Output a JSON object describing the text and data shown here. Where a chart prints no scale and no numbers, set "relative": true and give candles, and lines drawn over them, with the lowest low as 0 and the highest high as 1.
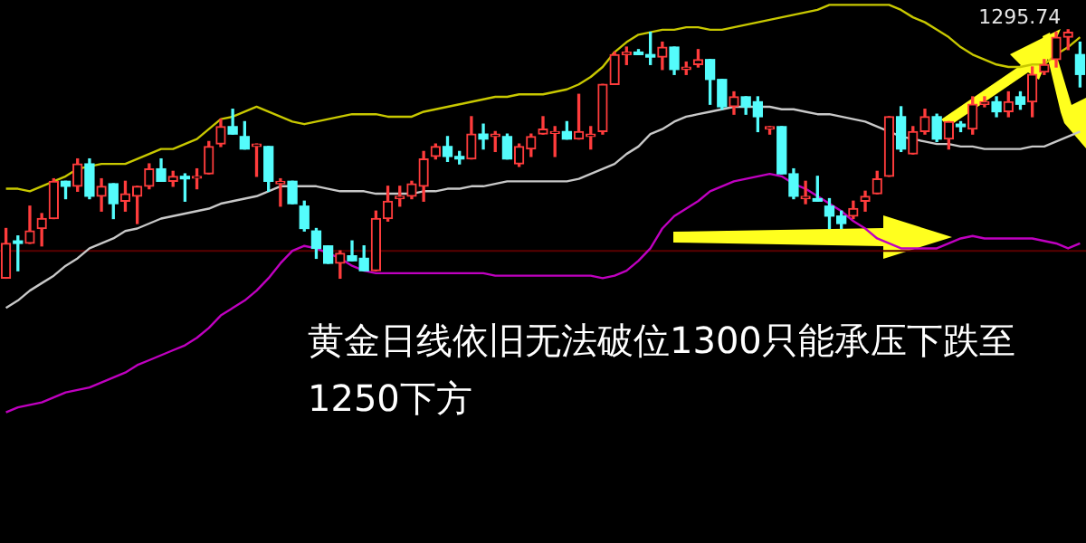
{
  "chart_data": {
    "type": "candlestick",
    "relative": true,
    "grid": false,
    "legend": false,
    "categories": [
      null,
      null,
      null,
      null,
      null,
      null,
      null,
      null,
      null,
      null,
      null,
      null,
      null,
      null,
      null,
      null,
      null,
      null,
      null,
      null,
      null,
      null,
      null,
      null,
      null,
      null,
      null,
      null,
      null,
      null,
      null,
      null,
      null,
      null,
      null,
      null,
      null,
      null,
      null,
      null,
      null,
      null,
      null,
      null,
      null,
      null,
      null,
      null,
      null,
      null,
      null,
      null,
      null,
      null,
      null,
      null,
      null,
      null,
      null,
      null,
      null,
      null,
      null,
      null,
      null,
      null,
      null,
      null,
      null,
      null,
      null,
      null,
      null,
      null,
      null,
      null,
      null,
      null,
      null,
      null,
      null,
      null,
      null,
      null,
      null,
      null,
      null,
      null,
      null,
      null,
      null
    ],
    "ohlc": [
      [
        0,
        0.2,
        0,
        0.14
      ],
      [
        0.15,
        0.17,
        0.03,
        0.14
      ],
      [
        0.14,
        0.29,
        0.14,
        0.19
      ],
      [
        0.2,
        0.26,
        0.13,
        0.24
      ],
      [
        0.24,
        0.4,
        0.24,
        0.39
      ],
      [
        0.39,
        0.39,
        0.32,
        0.37
      ],
      [
        0.37,
        0.48,
        0.35,
        0.46
      ],
      [
        0.46,
        0.48,
        0.32,
        0.33
      ],
      [
        0.33,
        0.4,
        0.27,
        0.37
      ],
      [
        0.38,
        0.38,
        0.24,
        0.3
      ],
      [
        0.31,
        0.39,
        0.27,
        0.34
      ],
      [
        0.33,
        0.37,
        0.22,
        0.37
      ],
      [
        0.37,
        0.46,
        0.36,
        0.44
      ],
      [
        0.44,
        0.48,
        0.39,
        0.39
      ],
      [
        0.39,
        0.43,
        0.37,
        0.41
      ],
      [
        0.41,
        0.42,
        0.31,
        0.4
      ],
      [
        0.41,
        0.44,
        0.36,
        0.41
      ],
      [
        0.42,
        0.55,
        0.42,
        0.53
      ],
      [
        0.54,
        0.64,
        0.53,
        0.61
      ],
      [
        0.61,
        0.68,
        0.58,
        0.58
      ],
      [
        0.57,
        0.63,
        0.52,
        0.52
      ],
      [
        0.53,
        0.54,
        0.41,
        0.54
      ],
      [
        0.53,
        0.53,
        0.35,
        0.39
      ],
      [
        0.38,
        0.4,
        0.29,
        0.39
      ],
      [
        0.39,
        0.39,
        0.3,
        0.3
      ],
      [
        0.29,
        0.31,
        0.19,
        0.2
      ],
      [
        0.19,
        0.2,
        0.08,
        0.12
      ],
      [
        0.13,
        0.13,
        0.06,
        0.06
      ],
      [
        0.06,
        0.11,
        0,
        0.1
      ],
      [
        0.09,
        0.15,
        0.07,
        0.07
      ],
      [
        0.08,
        0.13,
        0.03,
        0.03
      ],
      [
        0.03,
        0.27,
        0.03,
        0.24
      ],
      [
        0.24,
        0.37,
        0.23,
        0.31
      ],
      [
        0.32,
        0.37,
        0.29,
        0.33
      ],
      [
        0.33,
        0.39,
        0.32,
        0.38
      ],
      [
        0.37,
        0.51,
        0.31,
        0.48
      ],
      [
        0.49,
        0.54,
        0.48,
        0.53
      ],
      [
        0.53,
        0.57,
        0.47,
        0.49
      ],
      [
        0.49,
        0.51,
        0.46,
        0.48
      ],
      [
        0.48,
        0.65,
        0.48,
        0.58
      ],
      [
        0.58,
        0.62,
        0.52,
        0.56
      ],
      [
        0.57,
        0.59,
        0.51,
        0.58
      ],
      [
        0.57,
        0.58,
        0.48,
        0.48
      ],
      [
        0.46,
        0.54,
        0.45,
        0.53
      ],
      [
        0.52,
        0.58,
        0.49,
        0.57
      ],
      [
        0.58,
        0.65,
        0.58,
        0.6
      ],
      [
        0.59,
        0.61,
        0.49,
        0.59
      ],
      [
        0.59,
        0.63,
        0.56,
        0.56
      ],
      [
        0.56,
        0.74,
        0.56,
        0.59
      ],
      [
        0.57,
        0.61,
        0.52,
        0.58
      ],
      [
        0.59,
        0.78,
        0.58,
        0.78
      ],
      [
        0.78,
        0.91,
        0.78,
        0.9
      ],
      [
        0.9,
        0.93,
        0.86,
        0.91
      ],
      [
        0.91,
        0.92,
        0.9,
        0.9
      ],
      [
        0.9,
        0.99,
        0.86,
        0.89
      ],
      [
        0.89,
        0.95,
        0.84,
        0.93
      ],
      [
        0.93,
        0.93,
        0.82,
        0.84
      ],
      [
        0.84,
        0.87,
        0.82,
        0.85
      ],
      [
        0.86,
        0.92,
        0.85,
        0.88
      ],
      [
        0.88,
        0.88,
        0.7,
        0.8
      ],
      [
        0.8,
        0.8,
        0.68,
        0.69
      ],
      [
        0.69,
        0.75,
        0.66,
        0.73
      ],
      [
        0.73,
        0.73,
        0.66,
        0.69
      ],
      [
        0.71,
        0.73,
        0.59,
        0.65
      ],
      [
        0.6,
        0.61,
        0.58,
        0.61
      ],
      [
        0.61,
        0.61,
        0.42,
        0.42
      ],
      [
        0.42,
        0.44,
        0.32,
        0.33
      ],
      [
        0.32,
        0.39,
        0.3,
        0.33
      ],
      [
        0.32,
        0.41,
        0.31,
        0.31
      ],
      [
        0.29,
        0.32,
        0.2,
        0.25
      ],
      [
        0.25,
        0.27,
        0.2,
        0.22
      ],
      [
        0.25,
        0.31,
        0.24,
        0.28
      ],
      [
        0.31,
        0.35,
        0.27,
        0.33
      ],
      [
        0.34,
        0.43,
        0.34,
        0.4
      ],
      [
        0.41,
        0.65,
        0.41,
        0.65
      ],
      [
        0.65,
        0.69,
        0.51,
        0.52
      ],
      [
        0.5,
        0.61,
        0.5,
        0.59
      ],
      [
        0.59,
        0.68,
        0.58,
        0.65
      ],
      [
        0.65,
        0.66,
        0.55,
        0.56
      ],
      [
        0.56,
        0.63,
        0.52,
        0.63
      ],
      [
        0.62,
        0.63,
        0.59,
        0.61
      ],
      [
        0.6,
        0.73,
        0.58,
        0.7
      ],
      [
        0.7,
        0.73,
        0.69,
        0.71
      ],
      [
        0.71,
        0.73,
        0.65,
        0.67
      ],
      [
        0.67,
        0.75,
        0.65,
        0.71
      ],
      [
        0.73,
        0.75,
        0.68,
        0.7
      ],
      [
        0.71,
        0.85,
        0.65,
        0.82
      ],
      [
        0.83,
        0.88,
        0.82,
        0.86
      ],
      [
        0.88,
        0.99,
        0.85,
        0.97
      ],
      [
        0.97,
        1,
        0.92,
        0.99
      ],
      [
        0.9,
        0.95,
        0.77,
        0.82
      ]
    ],
    "series": [
      {
        "type": "line",
        "color": "#c8c800",
        "values": [
          0.36,
          0.36,
          0.35,
          0.37,
          0.39,
          0.41,
          0.44,
          0.45,
          0.46,
          0.46,
          0.46,
          0.48,
          0.5,
          0.52,
          0.52,
          0.54,
          0.56,
          0.6,
          0.64,
          0.65,
          0.67,
          0.69,
          0.67,
          0.65,
          0.63,
          0.62,
          0.63,
          0.64,
          0.65,
          0.66,
          0.66,
          0.66,
          0.65,
          0.65,
          0.65,
          0.67,
          0.68,
          0.69,
          0.7,
          0.71,
          0.72,
          0.73,
          0.73,
          0.74,
          0.74,
          0.74,
          0.75,
          0.76,
          0.78,
          0.81,
          0.85,
          0.91,
          0.95,
          0.98,
          0.99,
          1,
          1,
          1.01,
          1.01,
          1,
          1,
          1.01,
          1.02,
          1.03,
          1.04,
          1.05,
          1.06,
          1.07,
          1.08,
          1.1,
          1.1,
          1.1,
          1.1,
          1.1,
          1.1,
          1.08,
          1.05,
          1.03,
          1,
          0.97,
          0.93,
          0.9,
          0.88,
          0.86,
          0.85,
          0.85,
          0.86,
          0.86,
          0.9,
          0.93,
          0.97
        ]
      },
      {
        "type": "line",
        "color": "#c8c8c8",
        "values": [
          -0.12,
          -0.09,
          -0.05,
          -0.02,
          0.01,
          0.05,
          0.08,
          0.12,
          0.14,
          0.16,
          0.19,
          0.2,
          0.22,
          0.24,
          0.25,
          0.26,
          0.27,
          0.28,
          0.3,
          0.31,
          0.32,
          0.33,
          0.35,
          0.37,
          0.37,
          0.37,
          0.37,
          0.36,
          0.35,
          0.35,
          0.35,
          0.34,
          0.34,
          0.34,
          0.34,
          0.35,
          0.35,
          0.36,
          0.36,
          0.37,
          0.37,
          0.38,
          0.39,
          0.39,
          0.39,
          0.39,
          0.39,
          0.39,
          0.4,
          0.42,
          0.44,
          0.46,
          0.5,
          0.53,
          0.58,
          0.6,
          0.63,
          0.65,
          0.66,
          0.67,
          0.68,
          0.69,
          0.69,
          0.69,
          0.69,
          0.68,
          0.68,
          0.67,
          0.66,
          0.66,
          0.65,
          0.64,
          0.63,
          0.61,
          0.59,
          0.57,
          0.56,
          0.55,
          0.54,
          0.54,
          0.53,
          0.53,
          0.52,
          0.52,
          0.52,
          0.52,
          0.53,
          0.53,
          0.55,
          0.57,
          0.59
        ]
      },
      {
        "type": "line",
        "color": "#c000c0",
        "values": [
          -0.54,
          -0.52,
          -0.51,
          -0.5,
          -0.48,
          -0.46,
          -0.45,
          -0.44,
          -0.42,
          -0.4,
          -0.38,
          -0.35,
          -0.33,
          -0.31,
          -0.29,
          -0.27,
          -0.24,
          -0.2,
          -0.15,
          -0.12,
          -0.09,
          -0.05,
          0,
          0.06,
          0.11,
          0.13,
          0.12,
          0.1,
          0.08,
          0.05,
          0.03,
          0.02,
          0.02,
          0.02,
          0.02,
          0.02,
          0.02,
          0.02,
          0.02,
          0.02,
          0.02,
          0.01,
          0.01,
          0.01,
          0.01,
          0.01,
          0.01,
          0.01,
          0.01,
          0.01,
          0,
          0.01,
          0.03,
          0.07,
          0.12,
          0.2,
          0.25,
          0.28,
          0.31,
          0.35,
          0.37,
          0.39,
          0.4,
          0.41,
          0.42,
          0.41,
          0.38,
          0.36,
          0.33,
          0.3,
          0.27,
          0.23,
          0.2,
          0.16,
          0.14,
          0.12,
          0.12,
          0.12,
          0.12,
          0.14,
          0.16,
          0.17,
          0.16,
          0.16,
          0.16,
          0.16,
          0.16,
          0.15,
          0.14,
          0.12,
          0.14
        ]
      }
    ],
    "ref_lines": [
      {
        "axis": "y",
        "value": 0.11,
        "color": "#5a0000"
      }
    ],
    "annotations": [
      "1295.74",
      "黄金日线依旧无法破位1300只能承压下跌至1250下方"
    ]
  }
}
